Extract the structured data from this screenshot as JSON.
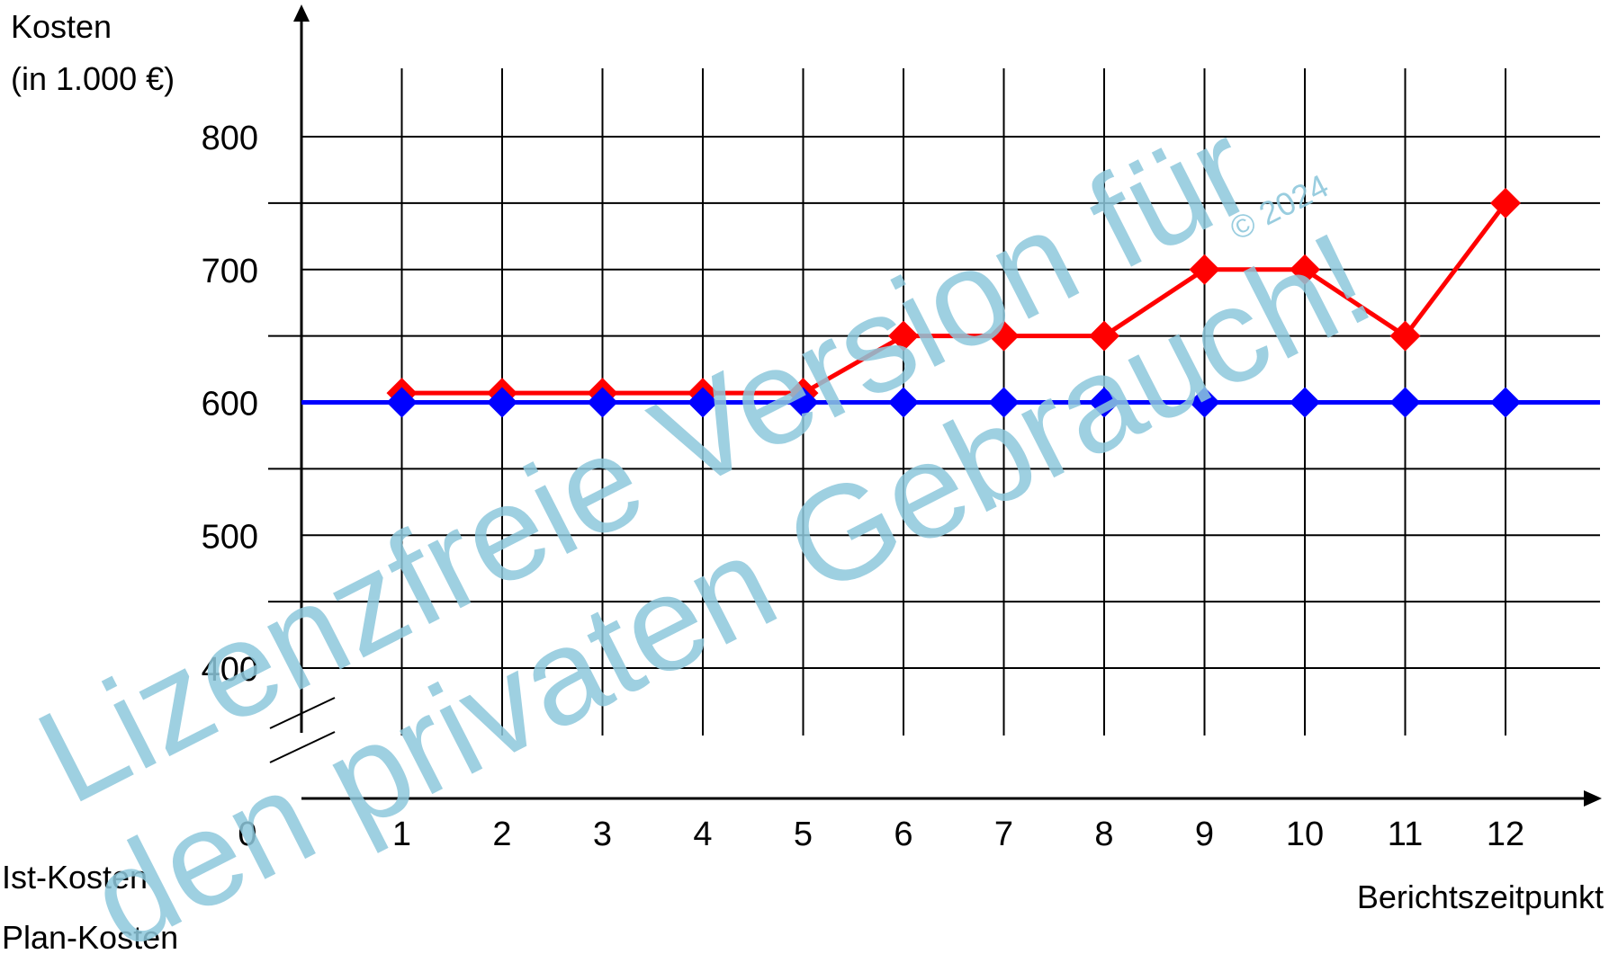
{
  "chart_data": {
    "type": "line",
    "x": [
      1,
      2,
      3,
      4,
      5,
      6,
      7,
      8,
      9,
      10,
      11,
      12
    ],
    "x_tick_labels": [
      "0",
      "1",
      "2",
      "3",
      "4",
      "5",
      "6",
      "7",
      "8",
      "9",
      "10",
      "11",
      "12"
    ],
    "y_tick_labels": [
      "400",
      "500",
      "600",
      "700",
      "800"
    ],
    "ylabel_line1": "Kosten",
    "ylabel_line2": "(in 1.000 €)",
    "xlabel": "Berichtszeitpunkt",
    "ylim": [
      350,
      850
    ],
    "y_break": true,
    "grid": true,
    "legend_position": "bottom-left",
    "series": [
      {
        "name": "Ist-Kosten",
        "color": "#ff0000",
        "values": [
          607,
          607,
          607,
          607,
          607,
          650,
          650,
          650,
          700,
          700,
          650,
          750
        ]
      },
      {
        "name": "Plan-Kosten",
        "color": "#0000ff",
        "values": [
          600,
          600,
          600,
          600,
          600,
          600,
          600,
          600,
          600,
          600,
          600,
          600
        ]
      }
    ]
  },
  "watermark": {
    "line1": "Lizenzfreie Version für",
    "line2": "den privaten Gebrauch!",
    "copyright": "© 2024"
  }
}
